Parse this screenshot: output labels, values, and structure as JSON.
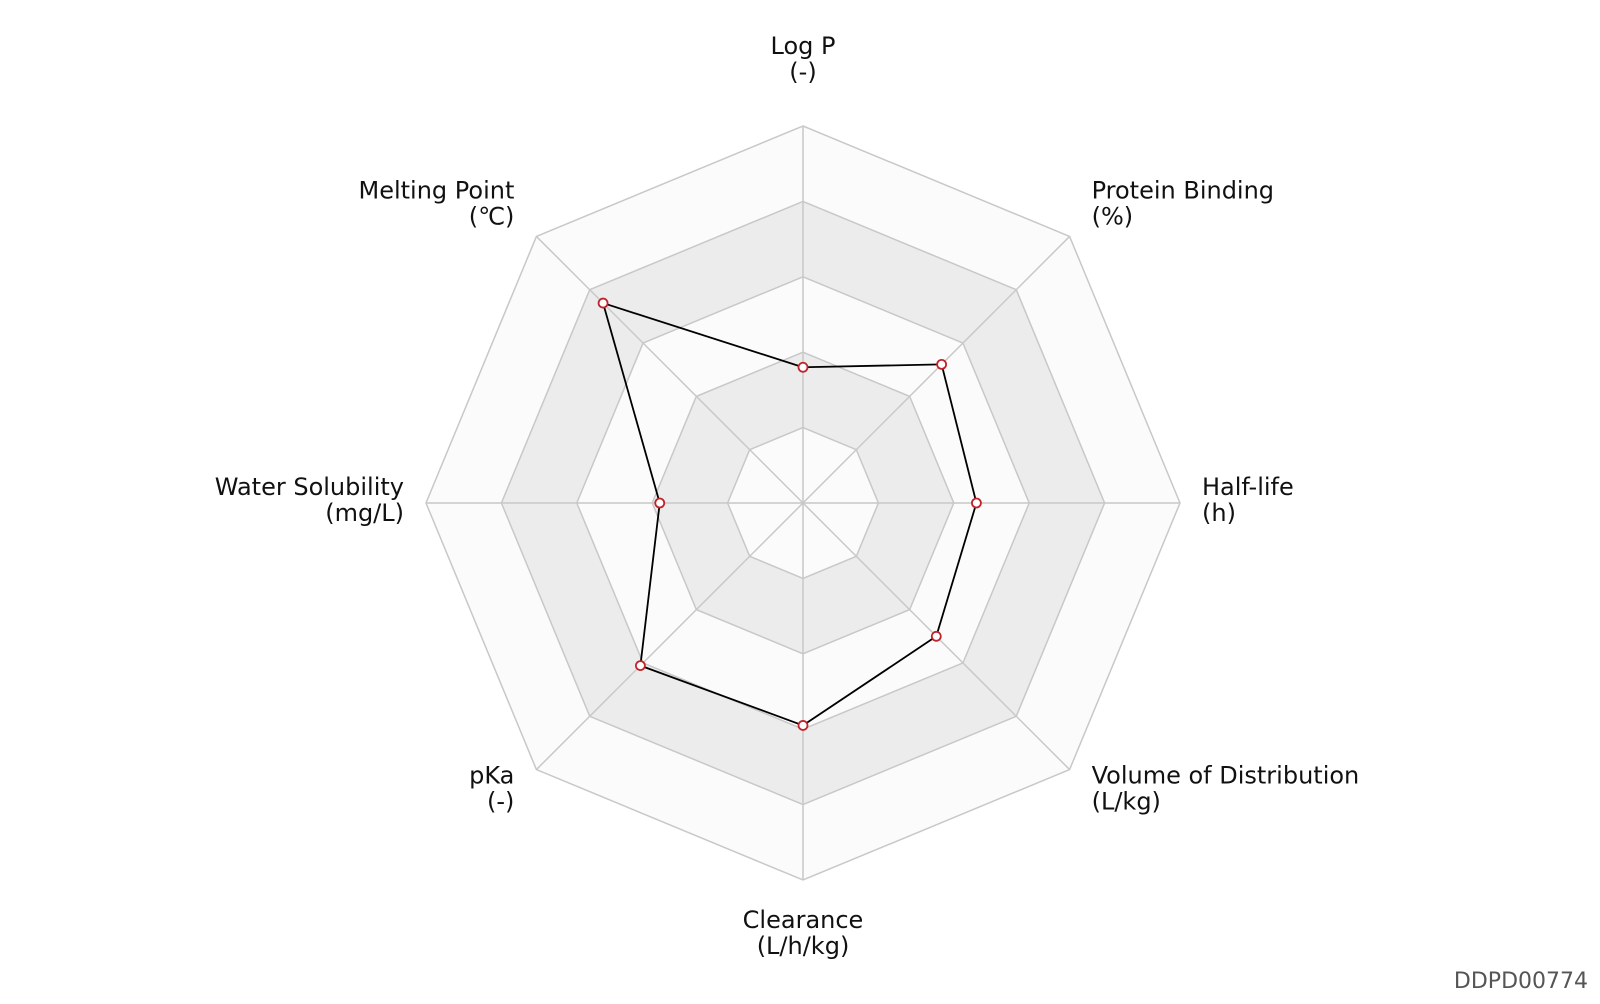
{
  "chart_data": {
    "type": "radar",
    "axes": [
      {
        "name": "Log P",
        "unit": "(-)"
      },
      {
        "name": "Protein Binding",
        "unit": "(%)"
      },
      {
        "name": "Half-life",
        "unit": "(h)"
      },
      {
        "name": "Volume of Distribution",
        "unit": "(L/kg)"
      },
      {
        "name": "Clearance",
        "unit": "(L/h/kg)"
      },
      {
        "name": "pKa",
        "unit": "(-)"
      },
      {
        "name": "Water Solubility",
        "unit": "(mg/L)"
      },
      {
        "name": "Melting Point",
        "unit": "(℃)"
      }
    ],
    "rings": 5,
    "range": [
      0,
      1
    ],
    "series": [
      {
        "values": [
          0.36,
          0.52,
          0.46,
          0.5,
          0.59,
          0.61,
          0.38,
          0.75
        ]
      }
    ],
    "colors": {
      "line": "#000000",
      "marker": "#c0242a",
      "band_alt": "#ececec",
      "band": "#fbfbfb",
      "grid": "#c8c8c8"
    }
  },
  "figure_id": "DDPD00774"
}
